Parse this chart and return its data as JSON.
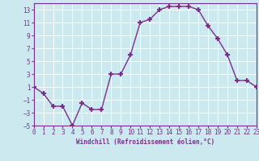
{
  "x": [
    0,
    1,
    2,
    3,
    4,
    5,
    6,
    7,
    8,
    9,
    10,
    11,
    12,
    13,
    14,
    15,
    16,
    17,
    18,
    19,
    20,
    21,
    22,
    23
  ],
  "y": [
    1,
    0,
    -2,
    -2,
    -5,
    -1.5,
    -2.5,
    -2.5,
    3,
    3,
    6,
    11,
    11.5,
    13,
    13.5,
    13.5,
    13.5,
    13,
    10.5,
    8.5,
    6,
    2,
    2,
    1
  ],
  "xlim": [
    0,
    23
  ],
  "ylim": [
    -5,
    14
  ],
  "yticks": [
    -5,
    -3,
    -1,
    1,
    3,
    5,
    7,
    9,
    11,
    13
  ],
  "xticks": [
    0,
    1,
    2,
    3,
    4,
    5,
    6,
    7,
    8,
    9,
    10,
    11,
    12,
    13,
    14,
    15,
    16,
    17,
    18,
    19,
    20,
    21,
    22,
    23
  ],
  "xlabel": "Windchill (Refroidissement éolien,°C)",
  "line_color": "#7B2D8B",
  "marker": "+",
  "marker_size": 5,
  "marker_lw": 1.5,
  "bg_color": "#cce9f0",
  "grid_color": "#ffffff",
  "tick_color": "#7B2D8B",
  "label_color": "#7B2D8B",
  "font_name": "monospace",
  "tick_fontsize": 5.5,
  "xlabel_fontsize": 5.5
}
